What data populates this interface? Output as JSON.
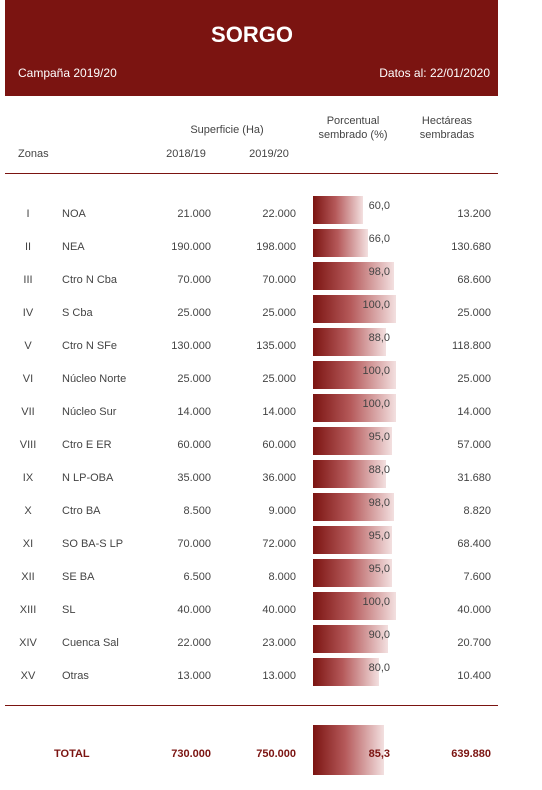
{
  "header": {
    "title": "SORGO",
    "campaign": "Campaña 2019/20",
    "date": "Datos al: 22/01/2020"
  },
  "table": {
    "columns": {
      "zones": "Zonas",
      "area": "Superficie (Ha)",
      "y1": "2018/19",
      "y2": "2019/20",
      "pct": "Porcentual sembrado (%)",
      "ha": "Hectáreas sembradas"
    },
    "rows": [
      {
        "zone": "I",
        "name": "NOA",
        "s1": "21.000",
        "s2": "22.000",
        "pct": {
          "value": 60,
          "label": "60,0"
        },
        "ha": "13.200"
      },
      {
        "zone": "II",
        "name": "NEA",
        "s1": "190.000",
        "s2": "198.000",
        "pct": {
          "value": 66,
          "label": "66,0"
        },
        "ha": "130.680"
      },
      {
        "zone": "III",
        "name": "Ctro N Cba",
        "s1": "70.000",
        "s2": "70.000",
        "pct": {
          "value": 98,
          "label": "98,0"
        },
        "ha": "68.600"
      },
      {
        "zone": "IV",
        "name": "S Cba",
        "s1": "25.000",
        "s2": "25.000",
        "pct": {
          "value": 100,
          "label": "100,0"
        },
        "ha": "25.000"
      },
      {
        "zone": "V",
        "name": "Ctro N SFe",
        "s1": "130.000",
        "s2": "135.000",
        "pct": {
          "value": 88,
          "label": "88,0"
        },
        "ha": "118.800"
      },
      {
        "zone": "VI",
        "name": "Núcleo Norte",
        "s1": "25.000",
        "s2": "25.000",
        "pct": {
          "value": 100,
          "label": "100,0"
        },
        "ha": "25.000"
      },
      {
        "zone": "VII",
        "name": "Núcleo Sur",
        "s1": "14.000",
        "s2": "14.000",
        "pct": {
          "value": 100,
          "label": "100,0"
        },
        "ha": "14.000"
      },
      {
        "zone": "VIII",
        "name": "Ctro E ER",
        "s1": "60.000",
        "s2": "60.000",
        "pct": {
          "value": 95,
          "label": "95,0"
        },
        "ha": "57.000"
      },
      {
        "zone": "IX",
        "name": "N LP-OBA",
        "s1": "35.000",
        "s2": "36.000",
        "pct": {
          "value": 88,
          "label": "88,0"
        },
        "ha": "31.680"
      },
      {
        "zone": "X",
        "name": "Ctro BA",
        "s1": "8.500",
        "s2": "9.000",
        "pct": {
          "value": 98,
          "label": "98,0"
        },
        "ha": "8.820"
      },
      {
        "zone": "XI",
        "name": "SO BA-S LP",
        "s1": "70.000",
        "s2": "72.000",
        "pct": {
          "value": 95,
          "label": "95,0"
        },
        "ha": "68.400"
      },
      {
        "zone": "XII",
        "name": "SE BA",
        "s1": "6.500",
        "s2": "8.000",
        "pct": {
          "value": 95,
          "label": "95,0"
        },
        "ha": "7.600"
      },
      {
        "zone": "XIII",
        "name": "SL",
        "s1": "40.000",
        "s2": "40.000",
        "pct": {
          "value": 100,
          "label": "100,0"
        },
        "ha": "40.000"
      },
      {
        "zone": "XIV",
        "name": "Cuenca Sal",
        "s1": "22.000",
        "s2": "23.000",
        "pct": {
          "value": 90,
          "label": "90,0"
        },
        "ha": "20.700"
      },
      {
        "zone": "XV",
        "name": "Otras",
        "s1": "13.000",
        "s2": "13.000",
        "pct": {
          "value": 80,
          "label": "80,0"
        },
        "ha": "10.400"
      }
    ],
    "total": {
      "name": "TOTAL",
      "s1": "730.000",
      "s2": "750.000",
      "pct": {
        "value": 85.3,
        "label": "85,3"
      },
      "ha": "639.880"
    }
  }
}
